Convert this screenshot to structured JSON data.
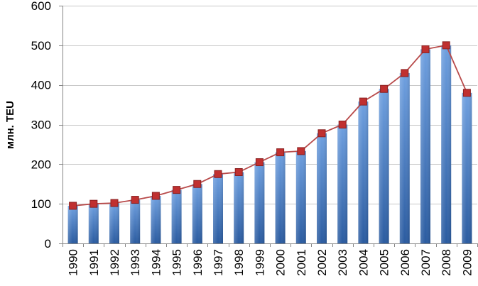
{
  "chart_data": {
    "type": "bar",
    "categories": [
      "1990",
      "1991",
      "1992",
      "1993",
      "1994",
      "1995",
      "1996",
      "1997",
      "1998",
      "1999",
      "2000",
      "2001",
      "2002",
      "2003",
      "2004",
      "2005",
      "2006",
      "2007",
      "2008",
      "2009"
    ],
    "series": [
      {
        "type": "bar",
        "values": [
          95,
          100,
          102,
          110,
          120,
          135,
          150,
          175,
          180,
          205,
          230,
          233,
          278,
          300,
          358,
          390,
          430,
          490,
          500,
          380
        ]
      },
      {
        "type": "line",
        "values": [
          95,
          100,
          102,
          110,
          120,
          135,
          150,
          175,
          180,
          205,
          230,
          233,
          278,
          300,
          358,
          390,
          430,
          490,
          500,
          380
        ]
      }
    ],
    "xlabel": "",
    "ylabel": "млн. TEU",
    "ylim": [
      0,
      600
    ],
    "yticks": [
      0,
      100,
      200,
      300,
      400,
      500,
      600
    ],
    "grid": true,
    "legend": "none",
    "colors": {
      "bar_top": "#6fa0e0",
      "bar_bottom": "#2a5ba0",
      "line": "#b84a4a",
      "marker": "#c03030",
      "marker_edge": "#8a2020",
      "grid": "#c8c8c8",
      "axis": "#868686"
    }
  }
}
